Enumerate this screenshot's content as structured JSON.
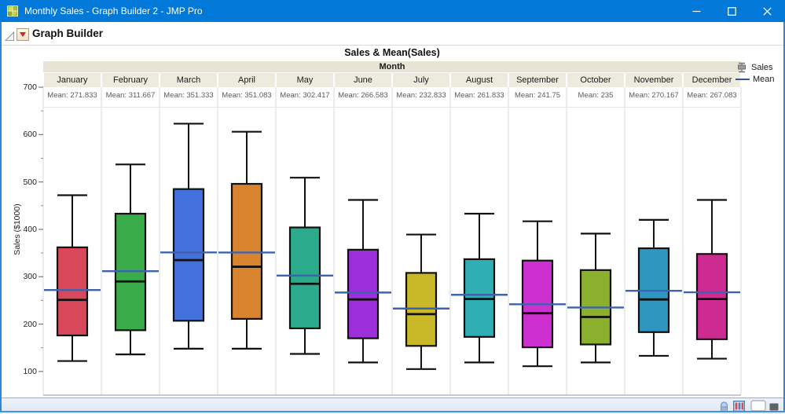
{
  "window": {
    "title": "Monthly Sales - Graph Builder 2 - JMP Pro"
  },
  "report": {
    "header": "Graph Builder"
  },
  "legend": {
    "sales": "Sales",
    "mean": "Mean"
  },
  "chart_data": {
    "type": "box",
    "title": "Sales & Mean(Sales)",
    "group_label": "Month",
    "ylabel": "Sales ($1000)",
    "y_ticks": [
      100,
      200,
      300,
      400,
      500,
      600,
      700
    ],
    "y_minor_ticks": [
      150,
      250,
      350,
      450,
      550,
      650
    ],
    "y_range": [
      50,
      700
    ],
    "grid": false,
    "legend_position": "top-right",
    "mean_line_color": "#3d63ae",
    "categories": [
      "January",
      "February",
      "March",
      "April",
      "May",
      "June",
      "July",
      "August",
      "September",
      "October",
      "November",
      "December"
    ],
    "series": [
      {
        "month": "January",
        "mean": 271.833,
        "mean_label": "Mean: 271.833",
        "min": 122,
        "q1": 176,
        "median": 251,
        "q3": 362,
        "max": 472,
        "color": "#d7495a"
      },
      {
        "month": "February",
        "mean": 311.667,
        "mean_label": "Mean: 311.667",
        "min": 136,
        "q1": 187,
        "median": 290,
        "q3": 433,
        "max": 537,
        "color": "#3aab49"
      },
      {
        "month": "March",
        "mean": 351.333,
        "mean_label": "Mean: 351.333",
        "min": 148,
        "q1": 207,
        "median": 335,
        "q3": 485,
        "max": 623,
        "color": "#4371dc"
      },
      {
        "month": "April",
        "mean": 351.083,
        "mean_label": "Mean: 351.083",
        "min": 148,
        "q1": 211,
        "median": 321,
        "q3": 496,
        "max": 606,
        "color": "#d8832e"
      },
      {
        "month": "May",
        "mean": 302.417,
        "mean_label": "Mean: 302.417",
        "min": 137,
        "q1": 191,
        "median": 285,
        "q3": 404,
        "max": 509,
        "color": "#2cab8c"
      },
      {
        "month": "June",
        "mean": 266.583,
        "mean_label": "Mean: 266.583",
        "min": 119,
        "q1": 170,
        "median": 252,
        "q3": 357,
        "max": 462,
        "color": "#9d2fdb"
      },
      {
        "month": "July",
        "mean": 232.833,
        "mean_label": "Mean: 232.833",
        "min": 105,
        "q1": 154,
        "median": 221,
        "q3": 308,
        "max": 389,
        "color": "#c9b827"
      },
      {
        "month": "August",
        "mean": 261.833,
        "mean_label": "Mean: 261.833",
        "min": 119,
        "q1": 173,
        "median": 253,
        "q3": 337,
        "max": 433,
        "color": "#2fafb3"
      },
      {
        "month": "September",
        "mean": 241.75,
        "mean_label": "Mean: 241.75",
        "min": 111,
        "q1": 151,
        "median": 223,
        "q3": 334,
        "max": 417,
        "color": "#ce2fd0"
      },
      {
        "month": "October",
        "mean": 235,
        "mean_label": "Mean: 235",
        "min": 119,
        "q1": 157,
        "median": 215,
        "q3": 314,
        "max": 391,
        "color": "#8ab02d"
      },
      {
        "month": "November",
        "mean": 270.167,
        "mean_label": "Mean: 270.167",
        "min": 133,
        "q1": 183,
        "median": 252,
        "q3": 360,
        "max": 420,
        "color": "#2e97c0"
      },
      {
        "month": "December",
        "mean": 267.083,
        "mean_label": "Mean: 267.083",
        "min": 127,
        "q1": 168,
        "median": 253,
        "q3": 348,
        "max": 462,
        "color": "#ce2b92"
      }
    ]
  }
}
